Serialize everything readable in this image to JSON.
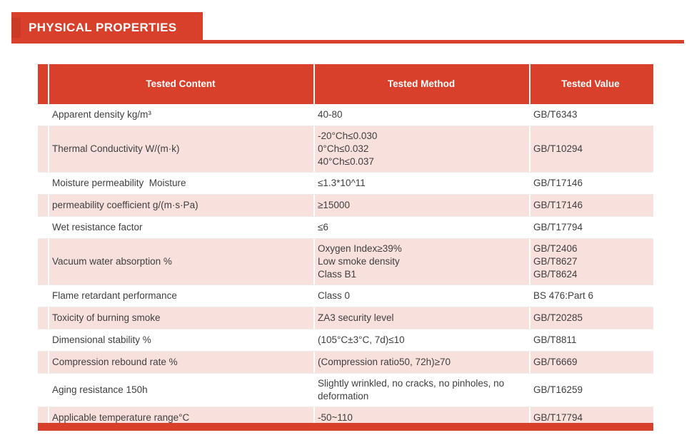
{
  "page": {
    "title": "PHYSICAL PROPERTIES"
  },
  "colors": {
    "accent_red": "#d9402c",
    "row_pink": "#f8e0dc",
    "body_text": "#3f3f3f",
    "header_text": "#ffffff"
  },
  "table": {
    "headers": [
      "Tested Content",
      "Tested Method",
      "Tested Value"
    ],
    "rows": [
      {
        "content": "Apparent density kg/m³",
        "method": [
          "40-80"
        ],
        "value": [
          "GB/T6343"
        ],
        "shade": false
      },
      {
        "content": "Thermal Conductivity W/(m·k)",
        "method": [
          "-20°Ch≤0.030",
          "0°Ch≤0.032",
          "40°Ch≤0.037"
        ],
        "value": [
          "GB/T10294"
        ],
        "shade": true
      },
      {
        "content": "Moisture permeability  Moisture",
        "method": [
          "≤1.3*10^11"
        ],
        "value": [
          "GB/T17146"
        ],
        "shade": false
      },
      {
        "content": "permeability coefficient g/(m·s·Pa)",
        "method": [
          "≥15000"
        ],
        "value": [
          "GB/T17146"
        ],
        "shade": true
      },
      {
        "content": "Wet resistance factor",
        "method": [
          "≤6"
        ],
        "value": [
          "GB/T17794"
        ],
        "shade": false
      },
      {
        "content": "Vacuum water absorption %",
        "method": [
          "Oxygen Index≥39%",
          "Low smoke density",
          "Class B1"
        ],
        "value": [
          "GB/T2406",
          "GB/T8627",
          "GB/T8624"
        ],
        "shade": true
      },
      {
        "content": "Flame retardant performance",
        "method": [
          "Class 0"
        ],
        "value": [
          "BS 476:Part 6"
        ],
        "shade": false
      },
      {
        "content": "Toxicity of burning smoke",
        "method": [
          "ZA3 security level"
        ],
        "value": [
          "GB/T20285"
        ],
        "shade": true
      },
      {
        "content": "Dimensional stability %",
        "method": [
          "(105°C±3°C, 7d)≤10"
        ],
        "value": [
          "GB/T8811"
        ],
        "shade": false
      },
      {
        "content": "Compression rebound rate %",
        "method": [
          "(Compression ratio50, 72h)≥70"
        ],
        "value": [
          "GB/T6669"
        ],
        "shade": true
      },
      {
        "content": "Aging resistance 150h",
        "method": [
          "Slightly wrinkled, no cracks, no pinholes, no deformation"
        ],
        "value": [
          "GB/T16259"
        ],
        "shade": false
      },
      {
        "content": "Applicable temperature range°C",
        "method": [
          "-50~110"
        ],
        "value": [
          "GB/T17794"
        ],
        "shade": true
      }
    ]
  }
}
